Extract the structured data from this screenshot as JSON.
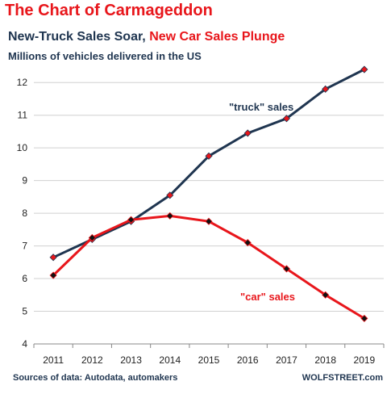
{
  "header": {
    "title": "The Chart of Carmageddon",
    "subtitle_part1": "New-Truck Sales Soar, ",
    "subtitle_part2": "New Car Sales Plunge",
    "units": "Millions of vehicles delivered in the US"
  },
  "footer": {
    "source": "Sources of data: Autodata, automakers",
    "brand": "WOLFSTREET.com"
  },
  "colors": {
    "truck_line": "#1f3550",
    "truck_marker": "#e8161b",
    "car_line": "#e8161b",
    "car_marker": "#111111",
    "title": "#e8161b",
    "grid": "#d0d0d0"
  },
  "chart_data": {
    "type": "line",
    "categories": [
      "2011",
      "2012",
      "2013",
      "2014",
      "2015",
      "2016",
      "2017",
      "2018",
      "2019"
    ],
    "ylim": [
      4,
      12.5
    ],
    "yticks": [
      4,
      5,
      6,
      7,
      8,
      9,
      10,
      11,
      12
    ],
    "grid": "horizontal",
    "series": [
      {
        "name": "\"truck\" sales",
        "values": [
          6.65,
          7.2,
          7.75,
          8.55,
          9.75,
          10.45,
          10.9,
          11.8,
          12.4
        ]
      },
      {
        "name": "\"car\" sales",
        "values": [
          6.1,
          7.25,
          7.8,
          7.92,
          7.75,
          7.1,
          6.3,
          5.5,
          4.78
        ]
      }
    ]
  }
}
